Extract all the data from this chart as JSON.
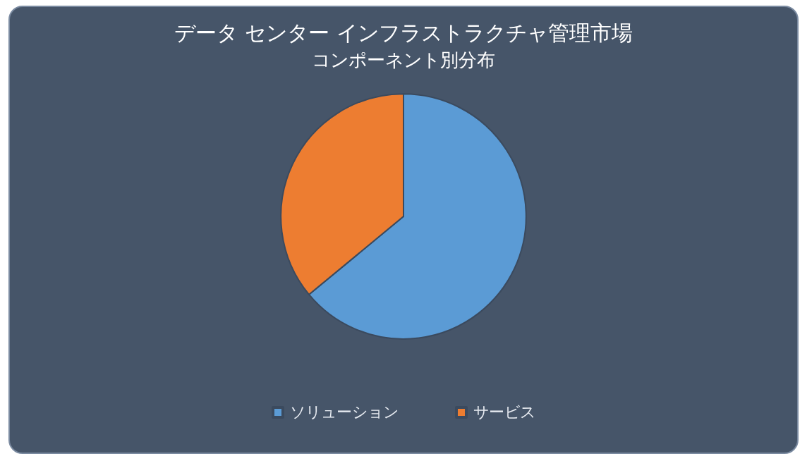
{
  "chart_data": {
    "type": "pie",
    "title": "データ センター インフラストラクチャ管理市場",
    "subtitle": "コンポーネント別分布",
    "categories": [
      "ソリューション",
      "サービス"
    ],
    "values": [
      64,
      36
    ],
    "colors": [
      "#5b9bd5",
      "#ed7d31"
    ],
    "legend": "bottom"
  }
}
